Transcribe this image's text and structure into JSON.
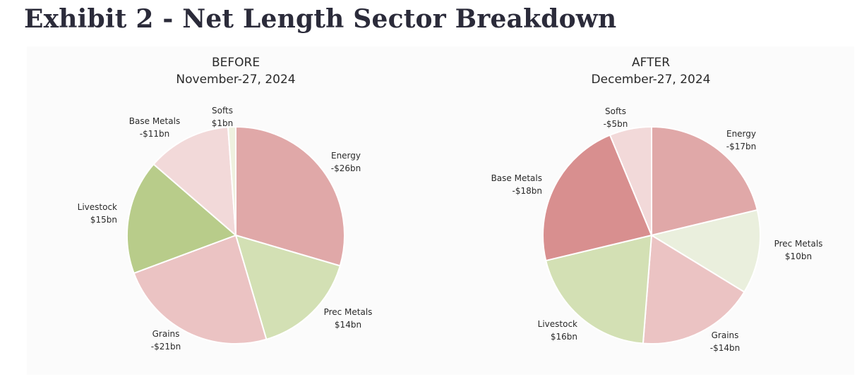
{
  "page_title": "Exhibit 2 - Net Length Sector Breakdown",
  "chart_data": [
    {
      "type": "pie",
      "title": "BEFORE",
      "subtitle": "November-27, 2024",
      "unit": "$bn",
      "slices": [
        {
          "name": "Energy",
          "value": -26,
          "label": "-$26bn",
          "color": "#e0a8a8"
        },
        {
          "name": "Prec Metals",
          "value": 14,
          "label": "$14bn",
          "color": "#d3e0b4"
        },
        {
          "name": "Grains",
          "value": -21,
          "label": "-$21bn",
          "color": "#ebc3c3"
        },
        {
          "name": "Livestock",
          "value": 15,
          "label": "$15bn",
          "color": "#b8cc8a"
        },
        {
          "name": "Base Metals",
          "value": -11,
          "label": "-$11bn",
          "color": "#f2d9d9"
        },
        {
          "name": "Softs",
          "value": 1,
          "label": "$1bn",
          "color": "#eff1df"
        }
      ]
    },
    {
      "type": "pie",
      "title": "AFTER",
      "subtitle": "December-27, 2024",
      "unit": "$bn",
      "slices": [
        {
          "name": "Energy",
          "value": -17,
          "label": "-$17bn",
          "color": "#e0a8a8"
        },
        {
          "name": "Prec Metals",
          "value": 10,
          "label": "$10bn",
          "color": "#eaefdd"
        },
        {
          "name": "Grains",
          "value": -14,
          "label": "-$14bn",
          "color": "#ebc3c3"
        },
        {
          "name": "Livestock",
          "value": 16,
          "label": "$16bn",
          "color": "#d3e0b4"
        },
        {
          "name": "Base Metals",
          "value": -18,
          "label": "-$18bn",
          "color": "#d88f8f"
        },
        {
          "name": "Softs",
          "value": -5,
          "label": "-$5bn",
          "color": "#f2d9d9"
        }
      ]
    }
  ]
}
